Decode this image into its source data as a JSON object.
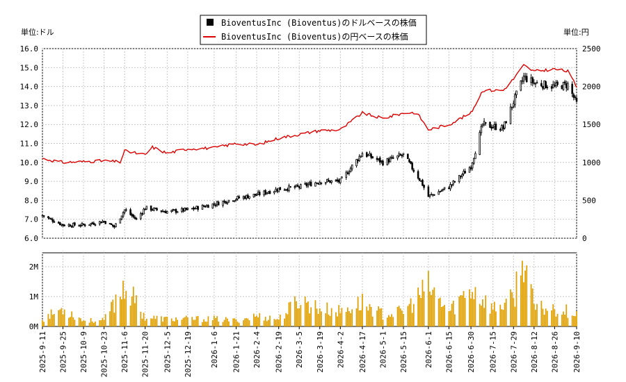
{
  "chart_data": [
    {
      "type": "candlestick+line",
      "title": "",
      "legend": {
        "placement": "top-center",
        "entries": [
          {
            "label": "BioventusInc (Bioventus)のドルベースの株価",
            "color": "#000000",
            "marker": "square"
          },
          {
            "label": "BioventusInc (Bioventus)の円ベースの株価",
            "color": "#dd0000",
            "marker": "line"
          }
        ]
      },
      "unit_left": "単位:ドル",
      "unit_right": "単位:円",
      "y_left": {
        "min": 6.0,
        "max": 16.0,
        "ticks": [
          "6.0",
          "7.0",
          "8.0",
          "9.0",
          "10.0",
          "11.0",
          "12.0",
          "13.0",
          "14.0",
          "15.0",
          "16.0"
        ]
      },
      "y_right": {
        "min": 0,
        "max": 2500,
        "ticks": [
          "0",
          "500",
          "1000",
          "1500",
          "2000",
          "2500"
        ]
      },
      "grid": true,
      "x_ticks": [
        "2025-9-11",
        "2025-9-25",
        "2025-10-9",
        "2025-10-23",
        "2025-11-6",
        "2025-11-20",
        "2025-12-5",
        "2025-12-19",
        "2026-1-6",
        "2026-1-21",
        "2026-2-4",
        "2026-2-19",
        "2026-3-5",
        "2026-3-19",
        "2026-4-2",
        "2026-4-17",
        "2026-5-1",
        "2026-5-15",
        "2026-6-1",
        "2026-6-15",
        "2026-6-30",
        "2026-7-15",
        "2026-7-29",
        "2026-8-12",
        "2026-8-26",
        "2026-9-10"
      ],
      "usd_close_keypoints": [
        {
          "x": "2025-9-11",
          "y": 7.2
        },
        {
          "x": "2025-9-25",
          "y": 6.7
        },
        {
          "x": "2025-10-9",
          "y": 6.7
        },
        {
          "x": "2025-10-23",
          "y": 6.9
        },
        {
          "x": "2025-10-30",
          "y": 6.6
        },
        {
          "x": "2025-11-6",
          "y": 7.5
        },
        {
          "x": "2025-11-14",
          "y": 7.0
        },
        {
          "x": "2025-11-20",
          "y": 7.6
        },
        {
          "x": "2025-12-5",
          "y": 7.4
        },
        {
          "x": "2025-12-19",
          "y": 7.5
        },
        {
          "x": "2026-1-6",
          "y": 7.8
        },
        {
          "x": "2026-1-21",
          "y": 8.1
        },
        {
          "x": "2026-2-4",
          "y": 8.3
        },
        {
          "x": "2026-2-19",
          "y": 8.6
        },
        {
          "x": "2026-3-5",
          "y": 8.7
        },
        {
          "x": "2026-3-19",
          "y": 9.0
        },
        {
          "x": "2026-4-2",
          "y": 9.0
        },
        {
          "x": "2026-4-17",
          "y": 10.5
        },
        {
          "x": "2026-5-1",
          "y": 10.0
        },
        {
          "x": "2026-5-15",
          "y": 10.4
        },
        {
          "x": "2026-5-27",
          "y": 9.0
        },
        {
          "x": "2026-6-1",
          "y": 8.2
        },
        {
          "x": "2026-6-15",
          "y": 8.7
        },
        {
          "x": "2026-6-30",
          "y": 9.8
        },
        {
          "x": "2026-7-8",
          "y": 12.0
        },
        {
          "x": "2026-7-22",
          "y": 11.8
        },
        {
          "x": "2026-7-29",
          "y": 13.2
        },
        {
          "x": "2026-8-5",
          "y": 14.5
        },
        {
          "x": "2026-8-12",
          "y": 14.2
        },
        {
          "x": "2026-8-26",
          "y": 14.0
        },
        {
          "x": "2026-9-4",
          "y": 14.1
        },
        {
          "x": "2026-9-10",
          "y": 13.1
        }
      ],
      "jpy_line_keypoints": [
        {
          "x": "2025-9-11",
          "y": 1050
        },
        {
          "x": "2025-9-25",
          "y": 1000
        },
        {
          "x": "2025-10-9",
          "y": 1010
        },
        {
          "x": "2025-10-23",
          "y": 1020
        },
        {
          "x": "2025-11-3",
          "y": 1005
        },
        {
          "x": "2025-11-6",
          "y": 1150
        },
        {
          "x": "2025-11-20",
          "y": 1100
        },
        {
          "x": "2025-11-25",
          "y": 1200
        },
        {
          "x": "2025-12-5",
          "y": 1120
        },
        {
          "x": "2025-12-19",
          "y": 1180
        },
        {
          "x": "2026-1-6",
          "y": 1190
        },
        {
          "x": "2026-1-21",
          "y": 1250
        },
        {
          "x": "2026-2-4",
          "y": 1230
        },
        {
          "x": "2026-2-19",
          "y": 1320
        },
        {
          "x": "2026-3-5",
          "y": 1370
        },
        {
          "x": "2026-3-19",
          "y": 1420
        },
        {
          "x": "2026-4-2",
          "y": 1430
        },
        {
          "x": "2026-4-17",
          "y": 1650
        },
        {
          "x": "2026-5-1",
          "y": 1580
        },
        {
          "x": "2026-5-15",
          "y": 1650
        },
        {
          "x": "2026-5-24",
          "y": 1660
        },
        {
          "x": "2026-6-1",
          "y": 1430
        },
        {
          "x": "2026-6-15",
          "y": 1500
        },
        {
          "x": "2026-6-30",
          "y": 1650
        },
        {
          "x": "2026-7-8",
          "y": 1950
        },
        {
          "x": "2026-7-22",
          "y": 1950
        },
        {
          "x": "2026-7-29",
          "y": 2100
        },
        {
          "x": "2026-8-5",
          "y": 2280
        },
        {
          "x": "2026-8-12",
          "y": 2200
        },
        {
          "x": "2026-8-26",
          "y": 2230
        },
        {
          "x": "2026-9-4",
          "y": 2200
        },
        {
          "x": "2026-9-10",
          "y": 2000
        }
      ]
    },
    {
      "type": "bar",
      "title": "",
      "y_ticks": [
        "0M",
        "1M",
        "2M"
      ],
      "ylim": [
        0,
        2000000
      ],
      "color": "#e0a000",
      "volume_keypoints": [
        {
          "x": "2025-9-11",
          "y": 250000
        },
        {
          "x": "2025-9-25",
          "y": 600000
        },
        {
          "x": "2025-10-9",
          "y": 200000
        },
        {
          "x": "2025-10-23",
          "y": 200000
        },
        {
          "x": "2025-11-6",
          "y": 1400000
        },
        {
          "x": "2025-11-20",
          "y": 300000
        },
        {
          "x": "2025-12-5",
          "y": 250000
        },
        {
          "x": "2025-12-19",
          "y": 250000
        },
        {
          "x": "2026-1-6",
          "y": 250000
        },
        {
          "x": "2026-1-21",
          "y": 200000
        },
        {
          "x": "2026-2-4",
          "y": 350000
        },
        {
          "x": "2026-2-19",
          "y": 250000
        },
        {
          "x": "2026-3-5",
          "y": 900000
        },
        {
          "x": "2026-3-19",
          "y": 600000
        },
        {
          "x": "2026-4-2",
          "y": 500000
        },
        {
          "x": "2026-4-17",
          "y": 800000
        },
        {
          "x": "2026-5-1",
          "y": 400000
        },
        {
          "x": "2026-5-15",
          "y": 500000
        },
        {
          "x": "2026-6-1",
          "y": 1300000
        },
        {
          "x": "2026-6-15",
          "y": 500000
        },
        {
          "x": "2026-6-30",
          "y": 1300000
        },
        {
          "x": "2026-7-15",
          "y": 600000
        },
        {
          "x": "2026-7-29",
          "y": 900000
        },
        {
          "x": "2026-8-5",
          "y": 2600000
        },
        {
          "x": "2026-8-12",
          "y": 600000
        },
        {
          "x": "2026-8-26",
          "y": 600000
        },
        {
          "x": "2026-9-10",
          "y": 450000
        }
      ]
    }
  ]
}
